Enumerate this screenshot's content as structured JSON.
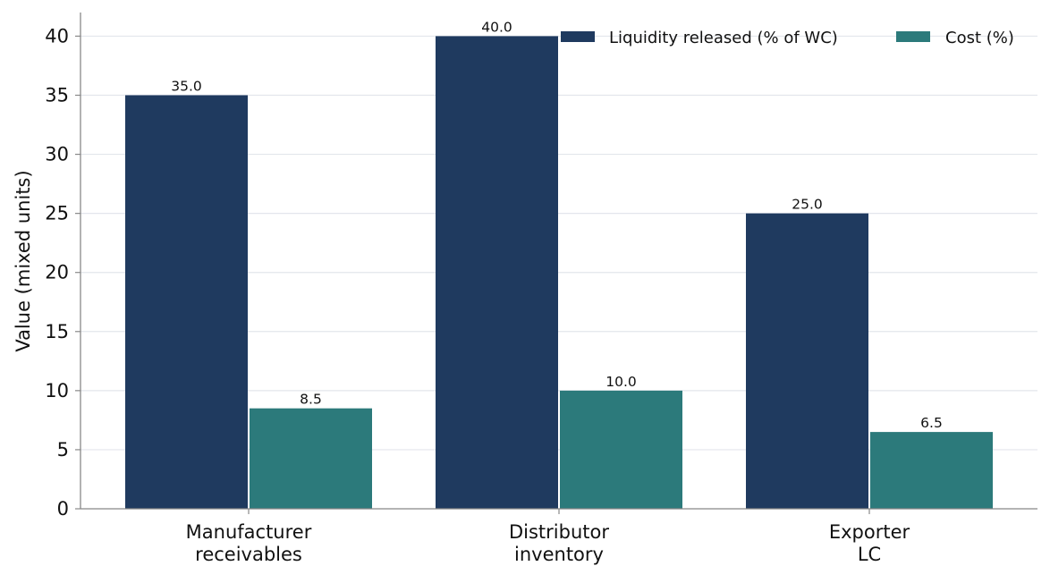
{
  "chart_data": {
    "type": "bar",
    "title": "",
    "xlabel": "",
    "ylabel": "Value (mixed units)",
    "ylim": [
      0,
      42
    ],
    "yticks": [
      0,
      5,
      10,
      15,
      20,
      25,
      30,
      35,
      40
    ],
    "grid": "horizontal",
    "legend_position": "top-right",
    "categories": [
      [
        "Manufacturer",
        "receivables"
      ],
      [
        "Distributor",
        "inventory"
      ],
      [
        "Exporter",
        "LC"
      ]
    ],
    "series": [
      {
        "name": "Liquidity released (% of WC)",
        "color": "#1f3a5f",
        "values": [
          35.0,
          40.0,
          25.0
        ],
        "labels": [
          "35.0",
          "40.0",
          "25.0"
        ]
      },
      {
        "name": "Cost (%)",
        "color": "#2c7a7b",
        "values": [
          8.5,
          10.0,
          6.5
        ],
        "labels": [
          "8.5",
          "10.0",
          "6.5"
        ]
      }
    ]
  }
}
